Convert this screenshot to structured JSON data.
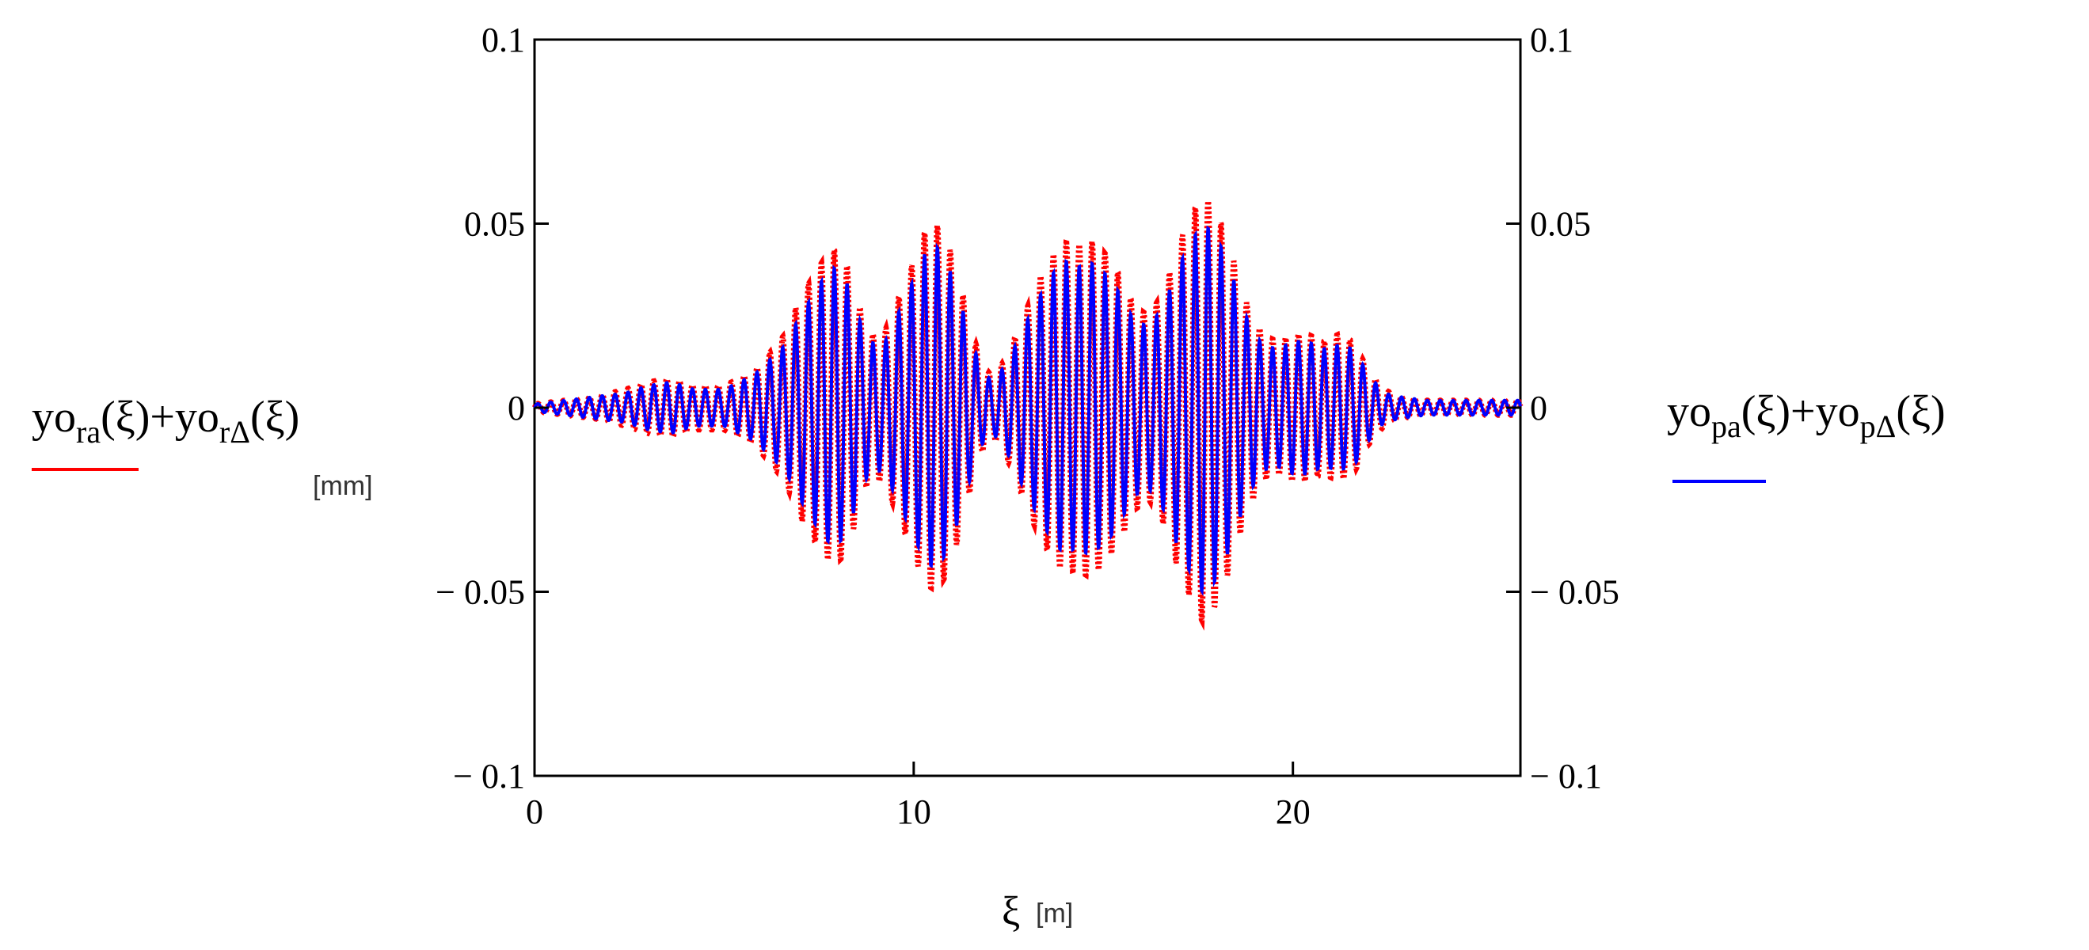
{
  "chart_data": {
    "type": "line",
    "xlabel": "ξ",
    "xlabel_unit": "[m]",
    "ylabel_unit": "[mm]",
    "xlim": [
      0,
      26
    ],
    "ylim": [
      -0.1,
      0.1
    ],
    "x_ticks": [
      "0",
      "10",
      "20"
    ],
    "x_tick_values": [
      0,
      10,
      20
    ],
    "y_ticks_left": [
      "0.1",
      "0.05",
      "0",
      "− 0.05",
      "− 0.1"
    ],
    "y_ticks_right": [
      "0.1",
      "0.05",
      "0",
      "− 0.05",
      "− 0.1"
    ],
    "y_tick_values": [
      0.1,
      0.05,
      0,
      -0.05,
      -0.1
    ],
    "grid": false,
    "legend_left": {
      "base1": "yo",
      "sub1": "ra",
      "arg1": "(ξ)+",
      "base2": "yo",
      "sub2": "rΔ",
      "arg2": "(ξ)"
    },
    "legend_right": {
      "base1": "yo",
      "sub1": "pa",
      "arg1": "(ξ)+",
      "base2": "yo",
      "sub2": "pΔ",
      "arg2": "(ξ)"
    },
    "series": [
      {
        "color": "#ff0000",
        "style": "dotted",
        "x": [
          0,
          0.8,
          1.6,
          2.4,
          3,
          3.6,
          4.2,
          5,
          5.8,
          6.6,
          7,
          7.3,
          7.6,
          7.9,
          8.2,
          8.5,
          8.8,
          9.2,
          9.6,
          10,
          10.3,
          10.6,
          10.9,
          11.2,
          11.5,
          11.8,
          12.1,
          12.5,
          12.9,
          13.3,
          13.7,
          14,
          14.3,
          14.6,
          14.9,
          15.2,
          15.5,
          15.8,
          16.2,
          16.6,
          17,
          17.3,
          17.6,
          17.9,
          18.2,
          18.5,
          18.8,
          19.2,
          19.6,
          20,
          20.4,
          20.8,
          21.2,
          21.6,
          22,
          22.4,
          22.8,
          23.5,
          24.5,
          25.5
        ],
        "amplitude": [
          0.001,
          0.002,
          0.003,
          0.005,
          0.007,
          0.008,
          0.006,
          0.006,
          0.01,
          0.02,
          0.03,
          0.035,
          0.04,
          0.043,
          0.04,
          0.03,
          0.02,
          0.02,
          0.03,
          0.04,
          0.048,
          0.05,
          0.045,
          0.035,
          0.022,
          0.012,
          0.008,
          0.015,
          0.025,
          0.035,
          0.042,
          0.045,
          0.044,
          0.046,
          0.044,
          0.04,
          0.035,
          0.028,
          0.025,
          0.032,
          0.045,
          0.052,
          0.058,
          0.055,
          0.048,
          0.038,
          0.028,
          0.02,
          0.018,
          0.02,
          0.02,
          0.018,
          0.02,
          0.018,
          0.01,
          0.005,
          0.003,
          0.002,
          0.002,
          0.002
        ]
      },
      {
        "color": "#0000ff",
        "style": "solid",
        "x": [
          0,
          0.8,
          1.6,
          2.4,
          3,
          3.6,
          4.2,
          5,
          5.8,
          6.6,
          7,
          7.3,
          7.6,
          7.9,
          8.2,
          8.5,
          8.8,
          9.2,
          9.6,
          10,
          10.3,
          10.6,
          10.9,
          11.2,
          11.5,
          11.8,
          12.1,
          12.5,
          12.9,
          13.3,
          13.7,
          14,
          14.3,
          14.6,
          14.9,
          15.2,
          15.5,
          15.8,
          16.2,
          16.6,
          17,
          17.3,
          17.6,
          17.9,
          18.2,
          18.5,
          18.8,
          19.2,
          19.6,
          20,
          20.4,
          20.8,
          21.2,
          21.6,
          22,
          22.4,
          22.8,
          23.5,
          24.5,
          25.5
        ],
        "amplitude": [
          0.001,
          0.002,
          0.003,
          0.004,
          0.006,
          0.007,
          0.005,
          0.005,
          0.009,
          0.017,
          0.025,
          0.03,
          0.035,
          0.038,
          0.035,
          0.026,
          0.018,
          0.017,
          0.026,
          0.035,
          0.042,
          0.044,
          0.039,
          0.03,
          0.019,
          0.01,
          0.007,
          0.013,
          0.022,
          0.03,
          0.037,
          0.04,
          0.038,
          0.04,
          0.038,
          0.035,
          0.03,
          0.024,
          0.022,
          0.028,
          0.039,
          0.045,
          0.05,
          0.048,
          0.042,
          0.033,
          0.024,
          0.017,
          0.016,
          0.018,
          0.018,
          0.016,
          0.017,
          0.016,
          0.009,
          0.004,
          0.003,
          0.002,
          0.002,
          0.002
        ]
      }
    ],
    "oscillation_period_m": 0.34
  }
}
